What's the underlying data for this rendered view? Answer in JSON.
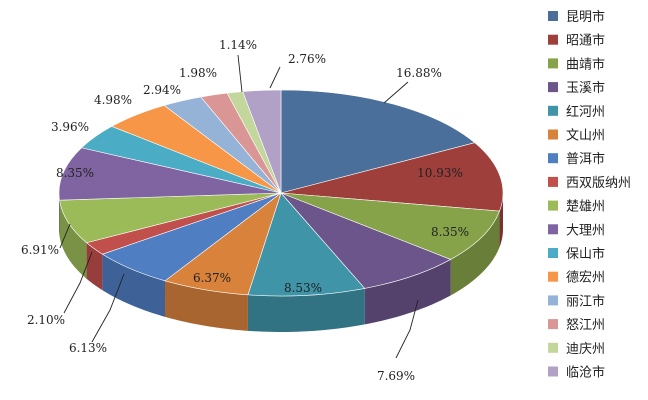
{
  "chart_data": {
    "type": "pie",
    "style": "3d",
    "categories": [
      "昆明市",
      "昭通市",
      "曲靖市",
      "玉溪市",
      "红河州",
      "文山州",
      "普洱市",
      "西双版纳州",
      "楚雄州",
      "大理州",
      "保山市",
      "德宏州",
      "丽江市",
      "怒江州",
      "迪庆州",
      "临沧市"
    ],
    "values": [
      16.88,
      10.93,
      8.35,
      7.69,
      8.53,
      6.37,
      6.13,
      2.1,
      6.91,
      8.35,
      3.96,
      4.98,
      2.94,
      1.98,
      1.14,
      2.76
    ],
    "labels": [
      "16.88%",
      "10.93%",
      "8.35%",
      "7.69%",
      "8.53%",
      "6.37%",
      "6.13%",
      "2.10%",
      "6.91%",
      "8.35%",
      "3.96%",
      "4.98%",
      "2.94%",
      "1.98%",
      "1.14%",
      "2.76%"
    ],
    "colors": [
      "#4a6f9b",
      "#9e3f3c",
      "#86a349",
      "#6c558a",
      "#3f94a8",
      "#d8823c",
      "#4f7ec3",
      "#c1504d",
      "#9bbb59",
      "#8064a2",
      "#4bacc6",
      "#f79646",
      "#95b3d7",
      "#d99694",
      "#c3d69b",
      "#b2a1c7"
    ],
    "legend_position": "right"
  }
}
